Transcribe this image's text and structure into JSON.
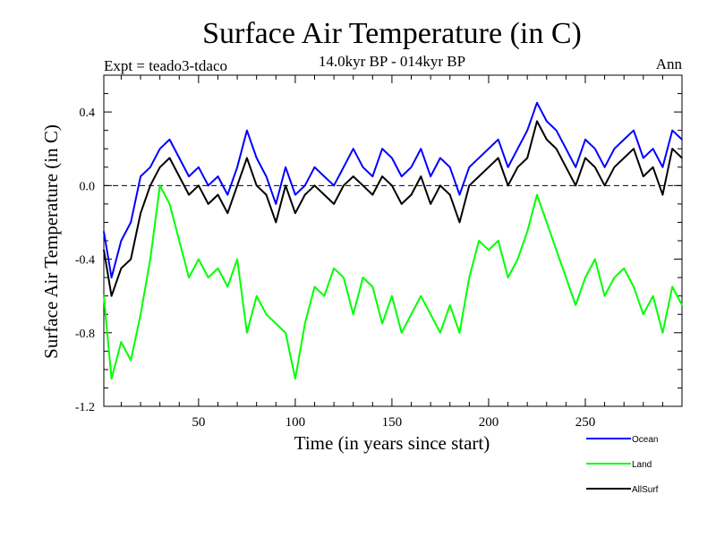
{
  "chart_data": {
    "type": "line",
    "title": "Surface Air Temperature (in C)",
    "subtitle": "14.0kyr BP - 014kyr BP",
    "left_label": "Expt = teado3-tdaco",
    "right_label": "Ann",
    "xlabel": "Time (in years since start)",
    "ylabel": "Surface Air Temperature (in C)",
    "xlim": [
      1,
      300
    ],
    "ylim": [
      -1.2,
      0.6
    ],
    "xticks": [
      50,
      100,
      150,
      200,
      250
    ],
    "yticks": [
      -1.2,
      -0.8,
      -0.4,
      0.0,
      0.4
    ],
    "ytick_labels": [
      "-1.2",
      "-0.8",
      "-0.4",
      "0.0",
      "0.4"
    ],
    "reference_line": 0.0,
    "legend_position": "bottom-right",
    "x": [
      1,
      5,
      10,
      15,
      20,
      25,
      30,
      35,
      40,
      45,
      50,
      55,
      60,
      65,
      70,
      75,
      80,
      85,
      90,
      95,
      100,
      105,
      110,
      115,
      120,
      125,
      130,
      135,
      140,
      145,
      150,
      155,
      160,
      165,
      170,
      175,
      180,
      185,
      190,
      195,
      200,
      205,
      210,
      215,
      220,
      225,
      230,
      235,
      240,
      245,
      250,
      255,
      260,
      265,
      270,
      275,
      280,
      285,
      290,
      295,
      300
    ],
    "series": [
      {
        "name": "Ocean",
        "color": "#0000ff",
        "values": [
          -0.25,
          -0.5,
          -0.3,
          -0.2,
          0.05,
          0.1,
          0.2,
          0.25,
          0.15,
          0.05,
          0.1,
          0.0,
          0.05,
          -0.05,
          0.1,
          0.3,
          0.15,
          0.05,
          -0.1,
          0.1,
          -0.05,
          0.0,
          0.1,
          0.05,
          0.0,
          0.1,
          0.2,
          0.1,
          0.05,
          0.2,
          0.15,
          0.05,
          0.1,
          0.2,
          0.05,
          0.15,
          0.1,
          -0.05,
          0.1,
          0.15,
          0.2,
          0.25,
          0.1,
          0.2,
          0.3,
          0.45,
          0.35,
          0.3,
          0.2,
          0.1,
          0.25,
          0.2,
          0.1,
          0.2,
          0.25,
          0.3,
          0.15,
          0.2,
          0.1,
          0.3,
          0.25
        ]
      },
      {
        "name": "Land",
        "color": "#00ff00",
        "values": [
          -0.6,
          -1.05,
          -0.85,
          -0.95,
          -0.7,
          -0.4,
          0.0,
          -0.1,
          -0.3,
          -0.5,
          -0.4,
          -0.5,
          -0.45,
          -0.55,
          -0.4,
          -0.8,
          -0.6,
          -0.7,
          -0.75,
          -0.8,
          -1.05,
          -0.75,
          -0.55,
          -0.6,
          -0.45,
          -0.5,
          -0.7,
          -0.5,
          -0.55,
          -0.75,
          -0.6,
          -0.8,
          -0.7,
          -0.6,
          -0.7,
          -0.8,
          -0.65,
          -0.8,
          -0.5,
          -0.3,
          -0.35,
          -0.3,
          -0.5,
          -0.4,
          -0.25,
          -0.05,
          -0.2,
          -0.35,
          -0.5,
          -0.65,
          -0.5,
          -0.4,
          -0.6,
          -0.5,
          -0.45,
          -0.55,
          -0.7,
          -0.6,
          -0.8,
          -0.55,
          -0.65
        ]
      },
      {
        "name": "AllSurf",
        "color": "#000000",
        "values": [
          -0.35,
          -0.6,
          -0.45,
          -0.4,
          -0.15,
          0.0,
          0.1,
          0.15,
          0.05,
          -0.05,
          0.0,
          -0.1,
          -0.05,
          -0.15,
          0.0,
          0.15,
          0.0,
          -0.05,
          -0.2,
          0.0,
          -0.15,
          -0.05,
          0.0,
          -0.05,
          -0.1,
          0.0,
          0.05,
          0.0,
          -0.05,
          0.05,
          0.0,
          -0.1,
          -0.05,
          0.05,
          -0.1,
          0.0,
          -0.05,
          -0.2,
          0.0,
          0.05,
          0.1,
          0.15,
          0.0,
          0.1,
          0.15,
          0.35,
          0.25,
          0.2,
          0.1,
          0.0,
          0.15,
          0.1,
          0.0,
          0.1,
          0.15,
          0.2,
          0.05,
          0.1,
          -0.05,
          0.2,
          0.15
        ]
      }
    ]
  }
}
